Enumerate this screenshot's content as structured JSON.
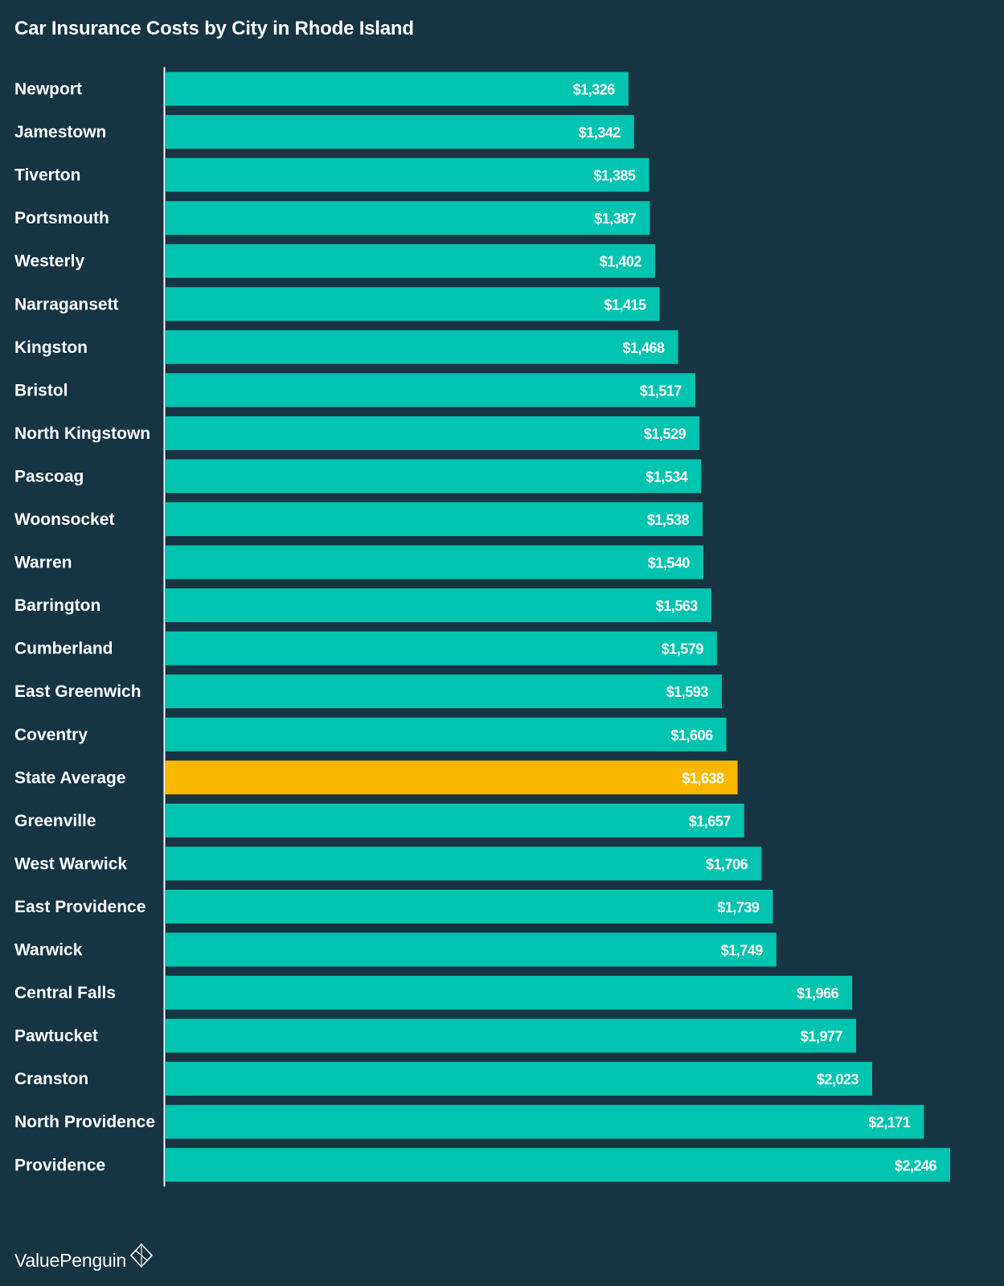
{
  "chart_data": {
    "type": "bar",
    "orientation": "horizontal",
    "title": "Car Insurance Costs by City in Rhode Island",
    "xlabel": "",
    "ylabel": "",
    "xlim": [
      0,
      2246
    ],
    "grid": false,
    "legend": "none",
    "highlight_category": "State Average",
    "colors": {
      "background": "#163442",
      "bar": "#00c4b0",
      "highlight": "#fbb800",
      "axis": "#ffffff",
      "text": "#ffffff"
    },
    "categories": [
      "Newport",
      "Jamestown",
      "Tiverton",
      "Portsmouth",
      "Westerly",
      "Narragansett",
      "Kingston",
      "Bristol",
      "North Kingstown",
      "Pascoag",
      "Woonsocket",
      "Warren",
      "Barrington",
      "Cumberland",
      "East Greenwich",
      "Coventry",
      "State Average",
      "Greenville",
      "West Warwick",
      "East Providence",
      "Warwick",
      "Central Falls",
      "Pawtucket",
      "Cranston",
      "North Providence",
      "Providence"
    ],
    "values": [
      1326,
      1342,
      1385,
      1387,
      1402,
      1415,
      1468,
      1517,
      1529,
      1534,
      1538,
      1540,
      1563,
      1579,
      1593,
      1606,
      1638,
      1657,
      1706,
      1739,
      1749,
      1966,
      1977,
      2023,
      2171,
      2246
    ],
    "value_labels": [
      "$1,326",
      "$1,342",
      "$1,385",
      "$1,387",
      "$1,402",
      "$1,415",
      "$1,468",
      "$1,517",
      "$1,529",
      "$1,534",
      "$1,538",
      "$1,540",
      "$1,563",
      "$1,579",
      "$1,593",
      "$1,606",
      "$1,638",
      "$1,657",
      "$1,706",
      "$1,739",
      "$1,749",
      "$1,966",
      "$1,977",
      "$2,023",
      "$2,171",
      "$2,246"
    ]
  },
  "brand": {
    "name": "ValuePenguin",
    "logo_icon": "penguin-diamond-icon"
  }
}
